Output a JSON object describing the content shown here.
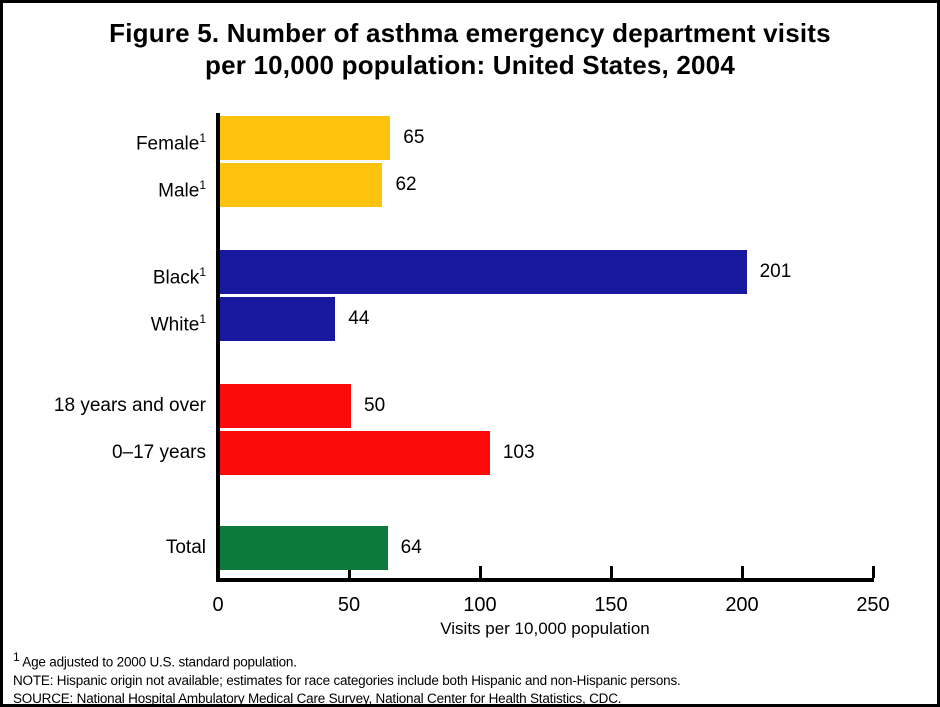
{
  "title": {
    "line1": "Figure 5. Number of asthma emergency department visits",
    "line2": "per 10,000 population: United States, 2004"
  },
  "chart_data": {
    "type": "bar",
    "orientation": "horizontal",
    "title": "Figure 5. Number of asthma emergency department visits per 10,000 population: United States, 2004",
    "xlabel": "Visits per 10,000 population",
    "ylabel": "",
    "xlim": [
      0,
      250
    ],
    "x_ticks": [
      "0",
      "50",
      "100",
      "150",
      "200",
      "250"
    ],
    "grid": false,
    "legend": "none",
    "value_labels_shown": true,
    "categories": [
      "Female",
      "Male",
      "Black",
      "White",
      "18 years and over",
      "0–17 years",
      "Total"
    ],
    "values": [
      65,
      62,
      201,
      44,
      50,
      103,
      64
    ],
    "rows": [
      {
        "label": "Female",
        "superscript": "1",
        "value": 65,
        "color": "#FFC20E",
        "group": "sex"
      },
      {
        "label": "Male",
        "superscript": "1",
        "value": 62,
        "color": "#FFC20E",
        "group": "sex"
      },
      {
        "label": "Black",
        "superscript": "1",
        "value": 201,
        "color": "#18189E",
        "group": "race"
      },
      {
        "label": "White",
        "superscript": "1",
        "value": 44,
        "color": "#18189E",
        "group": "race"
      },
      {
        "label": "18 years and over",
        "superscript": "",
        "value": 50,
        "color": "#FB0B0B",
        "group": "age"
      },
      {
        "label": "0–17 years",
        "superscript": "",
        "value": 103,
        "color": "#FB0B0B",
        "group": "age"
      },
      {
        "label": "Total",
        "superscript": "",
        "value": 64,
        "color": "#0B7A3B",
        "group": "total"
      }
    ]
  },
  "footnotes": {
    "note1_sup": "1",
    "note1_text": " Age adjusted to 2000 U.S. standard population.",
    "note2": "NOTE: Hispanic origin not available; estimates for race categories include both Hispanic and non-Hispanic persons.",
    "note3": "SOURCE: National Hospital Ambulatory Medical Care Survey, National Center for Health Statistics, CDC."
  }
}
